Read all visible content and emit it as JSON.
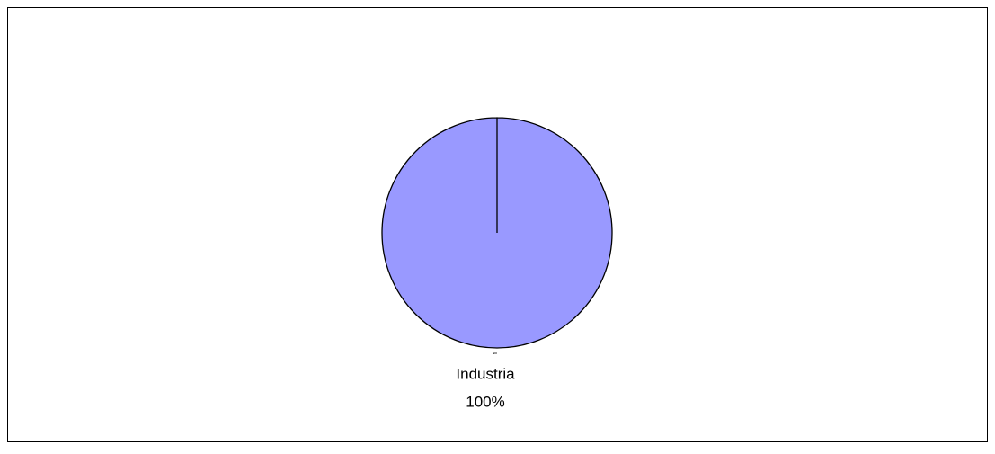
{
  "chart_data": {
    "type": "pie",
    "categories": [
      "Industria"
    ],
    "values": [
      100
    ],
    "value_labels": [
      "100%"
    ],
    "colors": [
      "#9999ff"
    ]
  }
}
